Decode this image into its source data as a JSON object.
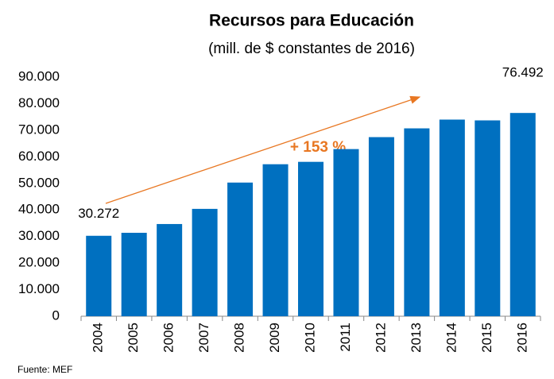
{
  "chart_data": {
    "type": "bar",
    "title": "Recursos para Educación",
    "subtitle": "(mill. de $ constantes de 2016)",
    "categories": [
      "2004",
      "2005",
      "2006",
      "2007",
      "2008",
      "2009",
      "2010",
      "2011",
      "2012",
      "2013",
      "2014",
      "2015",
      "2016"
    ],
    "values": [
      30272,
      31400,
      34700,
      40400,
      50300,
      57200,
      58100,
      62900,
      67400,
      70700,
      74000,
      73700,
      76492
    ],
    "value_labels": [
      "30.272",
      null,
      null,
      null,
      null,
      null,
      null,
      null,
      null,
      null,
      null,
      null,
      "76.492"
    ],
    "color": "#0070c0",
    "ylim": [
      0,
      90000
    ],
    "yticks": [
      0,
      {
        "value": 10000,
        "label": "10.000"
      },
      {
        "value": 20000,
        "label": "20.000"
      },
      {
        "value": 30000,
        "label": "30.000"
      },
      {
        "value": 40000,
        "label": "40.000"
      },
      {
        "value": 50000,
        "label": "50.000"
      },
      {
        "value": 60000,
        "label": "60.000"
      },
      {
        "value": 70000,
        "label": "70.000"
      },
      {
        "value": 80000,
        "label": "80.000"
      },
      {
        "value": 90000,
        "label": "90.000"
      }
    ],
    "grid": false,
    "annotation": "+ 153 %",
    "annotation_color": "#e87722",
    "source": "Fuente: MEF"
  }
}
